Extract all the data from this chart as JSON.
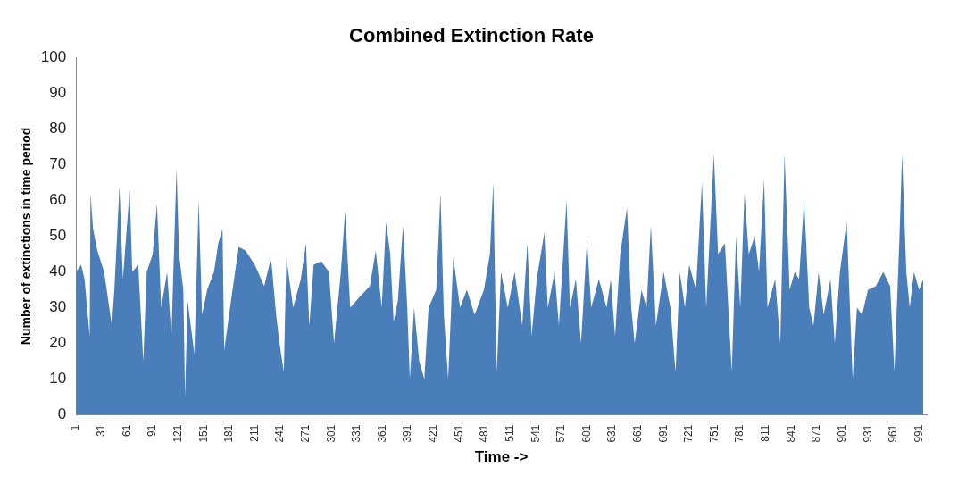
{
  "chart_data": {
    "type": "area",
    "title": "Combined Extinction Rate",
    "xlabel": "Time ->",
    "ylabel": "Number of extinctions in time period",
    "x": [
      1,
      7,
      11,
      17,
      18,
      21,
      26,
      34,
      43,
      46,
      52,
      56,
      64,
      67,
      74,
      80,
      84,
      91,
      96,
      101,
      108,
      113,
      119,
      122,
      127,
      129,
      132,
      140,
      145,
      149,
      155,
      163,
      168,
      173,
      175,
      183,
      192,
      200,
      211,
      222,
      230,
      236,
      240,
      245,
      248,
      256,
      265,
      271,
      275,
      280,
      289,
      298,
      304,
      312,
      317,
      323,
      334,
      346,
      353,
      360,
      365,
      370,
      374,
      379,
      385,
      390,
      393,
      398,
      404,
      410,
      415,
      424,
      429,
      433,
      438,
      444,
      452,
      460,
      469,
      480,
      487,
      491,
      495,
      500,
      508,
      516,
      525,
      531,
      536,
      542,
      551,
      555,
      563,
      568,
      577,
      581,
      588,
      594,
      601,
      606,
      615,
      624,
      629,
      634,
      640,
      648,
      653,
      657,
      665,
      671,
      676,
      682,
      691,
      699,
      705,
      710,
      716,
      721,
      729,
      736,
      741,
      750,
      755,
      763,
      771,
      776,
      781,
      786,
      791,
      798,
      803,
      809,
      813,
      822,
      828,
      833,
      839,
      845,
      850,
      856,
      862,
      867,
      873,
      879,
      887,
      892,
      898,
      906,
      913,
      918,
      924,
      931,
      940,
      949,
      957,
      962,
      968,
      971,
      976,
      980,
      985,
      991,
      996
    ],
    "values": [
      40,
      42,
      38,
      22,
      62,
      52,
      46,
      40,
      25,
      35,
      64,
      38,
      63,
      40,
      42,
      15,
      40,
      45,
      59,
      30,
      40,
      22,
      69,
      45,
      35,
      5,
      32,
      17,
      60,
      28,
      35,
      40,
      48,
      52,
      18,
      32,
      47,
      46,
      42,
      36,
      44,
      28,
      20,
      12,
      44,
      30,
      38,
      48,
      25,
      42,
      43,
      40,
      20,
      40,
      57,
      30,
      33,
      36,
      46,
      30,
      54,
      45,
      26,
      32,
      53,
      30,
      10,
      30,
      15,
      10,
      30,
      35,
      62,
      28,
      10,
      44,
      30,
      35,
      28,
      35,
      45,
      65,
      12,
      40,
      30,
      40,
      25,
      48,
      22,
      38,
      51,
      30,
      40,
      25,
      60,
      30,
      38,
      20,
      49,
      30,
      38,
      30,
      38,
      22,
      45,
      58,
      30,
      20,
      35,
      30,
      53,
      25,
      40,
      30,
      12,
      40,
      30,
      42,
      35,
      65,
      30,
      73,
      45,
      48,
      12,
      50,
      30,
      62,
      45,
      50,
      40,
      66,
      30,
      38,
      20,
      73,
      35,
      40,
      38,
      60,
      30,
      25,
      40,
      28,
      38,
      20,
      40,
      54,
      10,
      30,
      28,
      35,
      36,
      40,
      36,
      12,
      50,
      73,
      40,
      30,
      40,
      35,
      38
    ],
    "color": "#4a7ebb",
    "xlim": [
      1,
      1000
    ],
    "xticks": [
      1,
      31,
      61,
      91,
      121,
      151,
      181,
      211,
      241,
      271,
      301,
      331,
      361,
      391,
      421,
      451,
      481,
      511,
      541,
      571,
      601,
      631,
      661,
      691,
      721,
      751,
      781,
      811,
      841,
      871,
      901,
      931,
      961,
      991
    ],
    "ylim": [
      0,
      100
    ],
    "yticks": [
      0,
      10,
      20,
      30,
      40,
      50,
      60,
      70,
      80,
      90,
      100
    ],
    "grid": false,
    "legend": false,
    "marker": "none"
  }
}
